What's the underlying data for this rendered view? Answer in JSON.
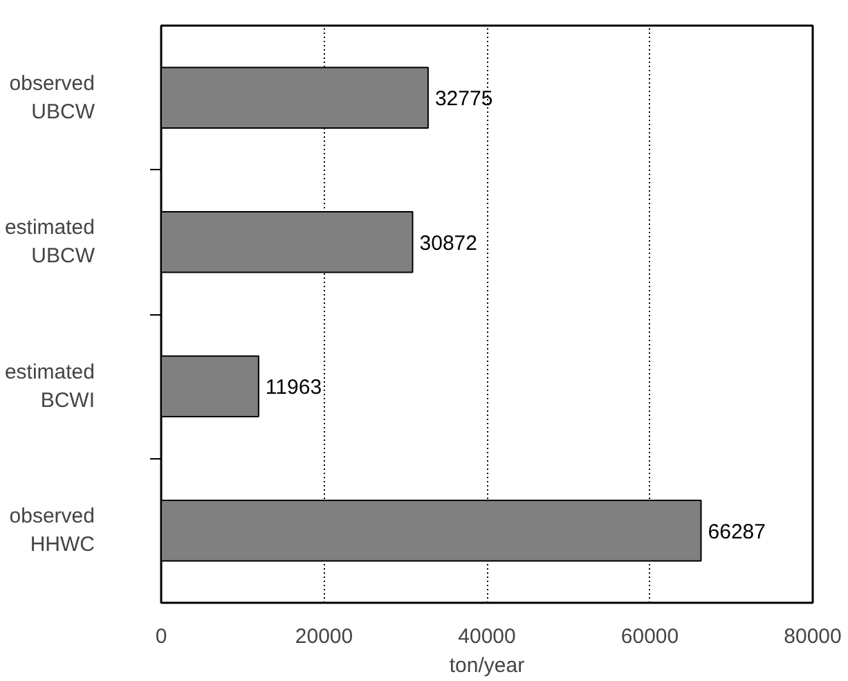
{
  "chart_data": {
    "type": "bar",
    "orientation": "horizontal",
    "categories": [
      "observed\nUBCW",
      "estimated\nUBCW",
      "estimated\nBCWI",
      "observed\nHHWC"
    ],
    "values": [
      32775,
      30872,
      11963,
      66287
    ],
    "color": "#808080",
    "xlabel": "ton/year",
    "xlim": [
      0,
      80000
    ],
    "xticks": [
      0,
      20000,
      40000,
      60000,
      80000
    ],
    "grid": "x",
    "data_labels": true
  }
}
